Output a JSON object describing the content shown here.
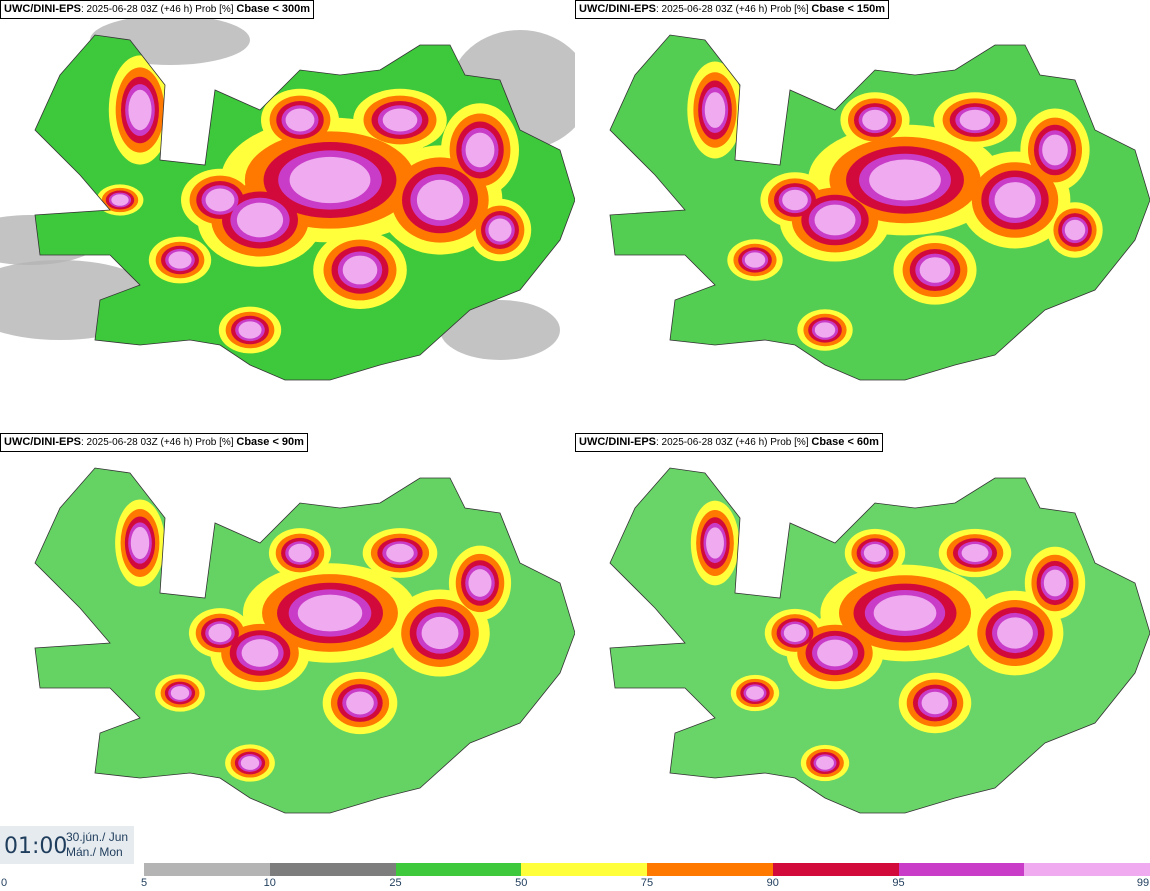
{
  "panels": [
    {
      "source": "UWC/DINI-EPS",
      "meta": ": 2025-06-28 03Z (+46 h) Prob [%]",
      "threshold": "Cbase < 300m",
      "coverage": 1.0
    },
    {
      "source": "UWC/DINI-EPS",
      "meta": ": 2025-06-28 03Z (+46 h) Prob [%]",
      "threshold": "Cbase < 150m",
      "coverage": 0.75
    },
    {
      "source": "UWC/DINI-EPS",
      "meta": ": 2025-06-28 03Z (+46 h) Prob [%]",
      "threshold": "Cbase < 90m",
      "coverage": 0.55
    },
    {
      "source": "UWC/DINI-EPS",
      "meta": ": 2025-06-28 03Z (+46 h) Prob [%]",
      "threshold": "Cbase < 60m",
      "coverage": 0.5
    }
  ],
  "valid_time": {
    "time": "01:00",
    "date_line1": "30.jún./ Jun",
    "date_line2": "Mán./ Mon"
  },
  "legend": {
    "ticks": [
      "0",
      "5",
      "10",
      "25",
      "50",
      "75",
      "90",
      "95",
      "99"
    ],
    "colors": [
      "#b4b4b4",
      "#7d7d7d",
      "#3ec83c",
      "#ffff3c",
      "#ff7800",
      "#d20a3c",
      "#c83cc8",
      "#f0aaf0"
    ]
  }
}
